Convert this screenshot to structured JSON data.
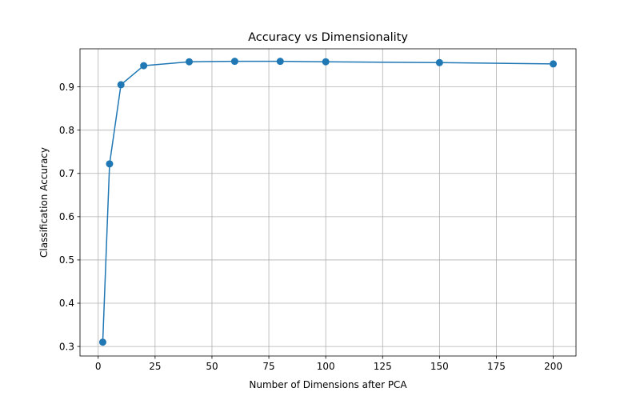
{
  "chart_data": {
    "type": "line",
    "title": "Accuracy vs Dimensionality",
    "xlabel": "Number of Dimensions after PCA",
    "ylabel": "Classification Accuracy",
    "x": [
      2,
      5,
      10,
      20,
      40,
      60,
      80,
      100,
      150,
      200
    ],
    "series": [
      {
        "values": [
          0.31,
          0.722,
          0.905,
          0.949,
          0.958,
          0.959,
          0.959,
          0.958,
          0.956,
          0.953
        ]
      }
    ],
    "xlim": [
      -8,
      210
    ],
    "ylim": [
      0.278,
      0.988
    ],
    "xticks": [
      0,
      25,
      50,
      75,
      100,
      125,
      150,
      175,
      200
    ],
    "yticks": [
      0.3,
      0.4,
      0.5,
      0.6,
      0.7,
      0.8,
      0.9
    ],
    "ytick_labels": [
      "0.3",
      "0.4",
      "0.5",
      "0.6",
      "0.7",
      "0.8",
      "0.9"
    ],
    "grid": true,
    "marker": "circle",
    "line_color": "#1f77b4"
  }
}
